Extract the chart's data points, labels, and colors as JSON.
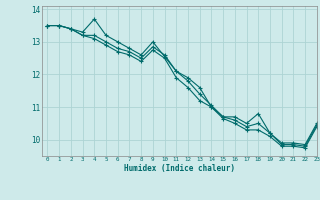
{
  "xlabel": "Humidex (Indice chaleur)",
  "ylabel": "",
  "bg_color": "#ceeaea",
  "grid_color": "#add4d4",
  "line_color": "#006b6b",
  "xlim": [
    -0.5,
    23
  ],
  "ylim": [
    9.5,
    14.1
  ],
  "yticks": [
    10,
    11,
    12,
    13,
    14
  ],
  "xticks": [
    0,
    1,
    2,
    3,
    4,
    5,
    6,
    7,
    8,
    9,
    10,
    11,
    12,
    13,
    14,
    15,
    16,
    17,
    18,
    19,
    20,
    21,
    22,
    23
  ],
  "series": [
    [
      13.5,
      13.5,
      13.4,
      13.3,
      13.7,
      13.2,
      13.0,
      12.8,
      12.6,
      13.0,
      12.55,
      12.1,
      11.9,
      11.6,
      11.0,
      10.7,
      10.7,
      10.5,
      10.8,
      10.2,
      9.9,
      9.9,
      9.85,
      10.5
    ],
    [
      13.5,
      13.5,
      13.4,
      13.2,
      13.2,
      13.0,
      12.8,
      12.7,
      12.5,
      12.85,
      12.6,
      12.1,
      11.8,
      11.4,
      11.05,
      10.7,
      10.6,
      10.4,
      10.5,
      10.2,
      9.85,
      9.85,
      9.8,
      10.45
    ],
    [
      13.5,
      13.5,
      13.4,
      13.2,
      13.1,
      12.9,
      12.7,
      12.6,
      12.4,
      12.75,
      12.5,
      11.9,
      11.6,
      11.2,
      11.0,
      10.65,
      10.5,
      10.3,
      10.3,
      10.1,
      9.8,
      9.8,
      9.75,
      10.4
    ]
  ]
}
